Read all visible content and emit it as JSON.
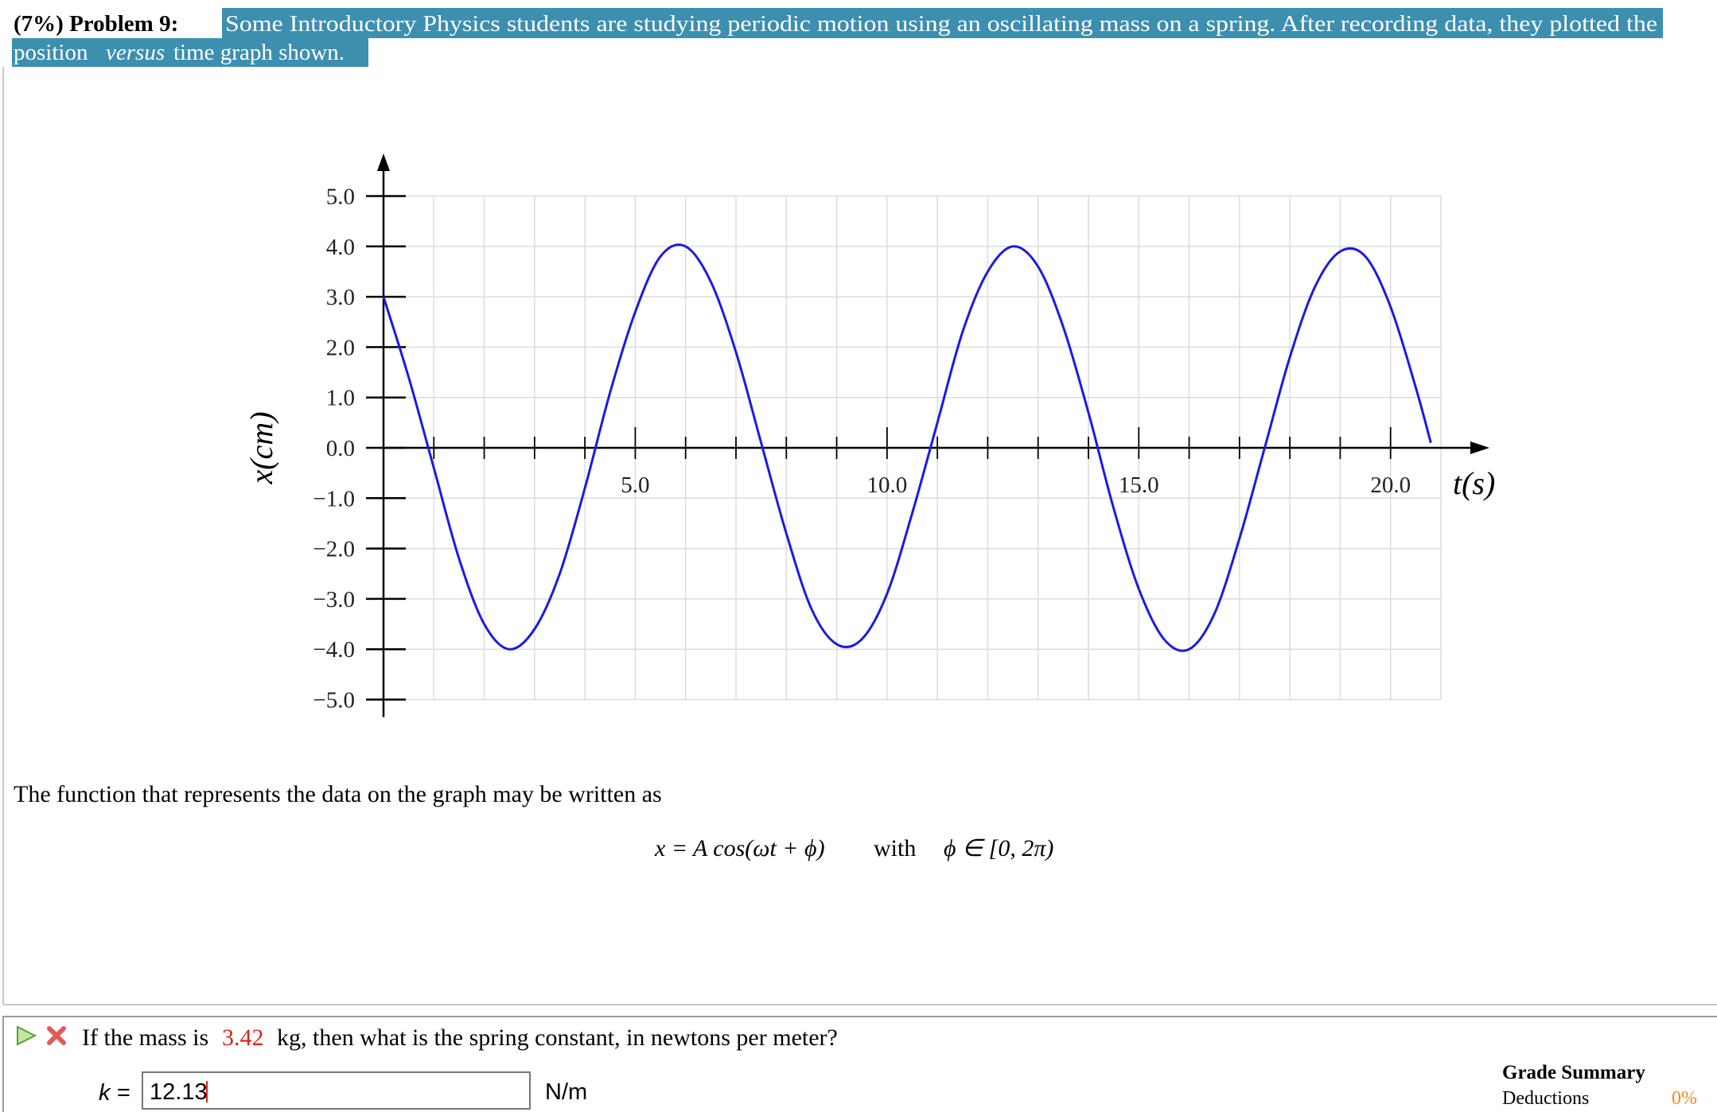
{
  "problem": {
    "label": "(7%) Problem 9:",
    "statement_line1": "Some Introductory Physics students are studying periodic motion using an oscillating mass on a spring. After recording data, they plotted the",
    "statement_word": "position",
    "statement_italic": "versus",
    "statement_end": "time graph shown."
  },
  "chart_data": {
    "type": "line",
    "xlabel": "t(s)",
    "ylabel": "x(cm)",
    "x": [
      0,
      0.5,
      1,
      1.5,
      2,
      2.5,
      3,
      3.5,
      4,
      4.5,
      5,
      5.5,
      6,
      6.5,
      7,
      7.5,
      8,
      8.5,
      9,
      9.5,
      10,
      10.5,
      11,
      11.5,
      12,
      12.5,
      13,
      13.5,
      14,
      14.5,
      15,
      15.5,
      16,
      16.5,
      17,
      17.5,
      18,
      18.5,
      19,
      19.5,
      20,
      20.5,
      20.8
    ],
    "series": [
      {
        "color": "#1a1ae6",
        "values": [
          3.0,
          1.4,
          -0.4,
          -2.2,
          -3.5,
          -4.0,
          -3.6,
          -2.5,
          -0.8,
          1.1,
          2.7,
          3.8,
          4.0,
          3.3,
          1.9,
          0.1,
          -1.7,
          -3.2,
          -3.9,
          -3.8,
          -2.9,
          -1.3,
          0.5,
          2.3,
          3.5,
          4.0,
          3.6,
          2.4,
          0.7,
          -1.2,
          -2.8,
          -3.8,
          -4.0,
          -3.3,
          -1.8,
          0.0,
          1.8,
          3.2,
          3.9,
          3.8,
          2.8,
          1.2,
          0.1
        ]
      }
    ],
    "xlim": [
      0,
      21
    ],
    "ylim": [
      -5,
      5
    ],
    "xticks": [
      {
        "value": 1,
        "label": null
      },
      {
        "value": 2,
        "label": null
      },
      {
        "value": 3,
        "label": null
      },
      {
        "value": 4,
        "label": null
      },
      {
        "value": 5,
        "label": "5.0"
      },
      {
        "value": 6,
        "label": null
      },
      {
        "value": 7,
        "label": null
      },
      {
        "value": 8,
        "label": null
      },
      {
        "value": 9,
        "label": null
      },
      {
        "value": 10,
        "label": "10.0"
      },
      {
        "value": 11,
        "label": null
      },
      {
        "value": 12,
        "label": null
      },
      {
        "value": 13,
        "label": null
      },
      {
        "value": 14,
        "label": null
      },
      {
        "value": 15,
        "label": "15.0"
      },
      {
        "value": 16,
        "label": null
      },
      {
        "value": 17,
        "label": null
      },
      {
        "value": 18,
        "label": null
      },
      {
        "value": 19,
        "label": null
      },
      {
        "value": 20,
        "label": "20.0"
      }
    ],
    "yticks": [
      {
        "value": 5,
        "label": "5.0"
      },
      {
        "value": 4,
        "label": "4.0"
      },
      {
        "value": 3,
        "label": "3.0"
      },
      {
        "value": 2,
        "label": "2.0"
      },
      {
        "value": 1,
        "label": "1.0"
      },
      {
        "value": 0,
        "label": "0.0"
      },
      {
        "value": -1,
        "label": "−1.0"
      },
      {
        "value": -2,
        "label": "−2.0"
      },
      {
        "value": -3,
        "label": "−3.0"
      },
      {
        "value": -4,
        "label": "−4.0"
      },
      {
        "value": -5,
        "label": "−5.0"
      }
    ],
    "grid": true
  },
  "function_text": "The function that represents the data on the graph may be written as",
  "equation": {
    "formula": "x = A cos(ωt + ϕ)",
    "word": "with",
    "condition": "ϕ ∈ [0, 2π)"
  },
  "question": {
    "prefix": "If the mass is",
    "mass": "3.42",
    "suffix": "kg, then what is the spring constant, in newtons per meter?"
  },
  "answer": {
    "label": "k =",
    "value": "12.13",
    "unit": "N/m"
  },
  "grade_summary": {
    "title": "Grade Summary",
    "deductions_label": "Deductions",
    "deductions_value": "0%"
  }
}
